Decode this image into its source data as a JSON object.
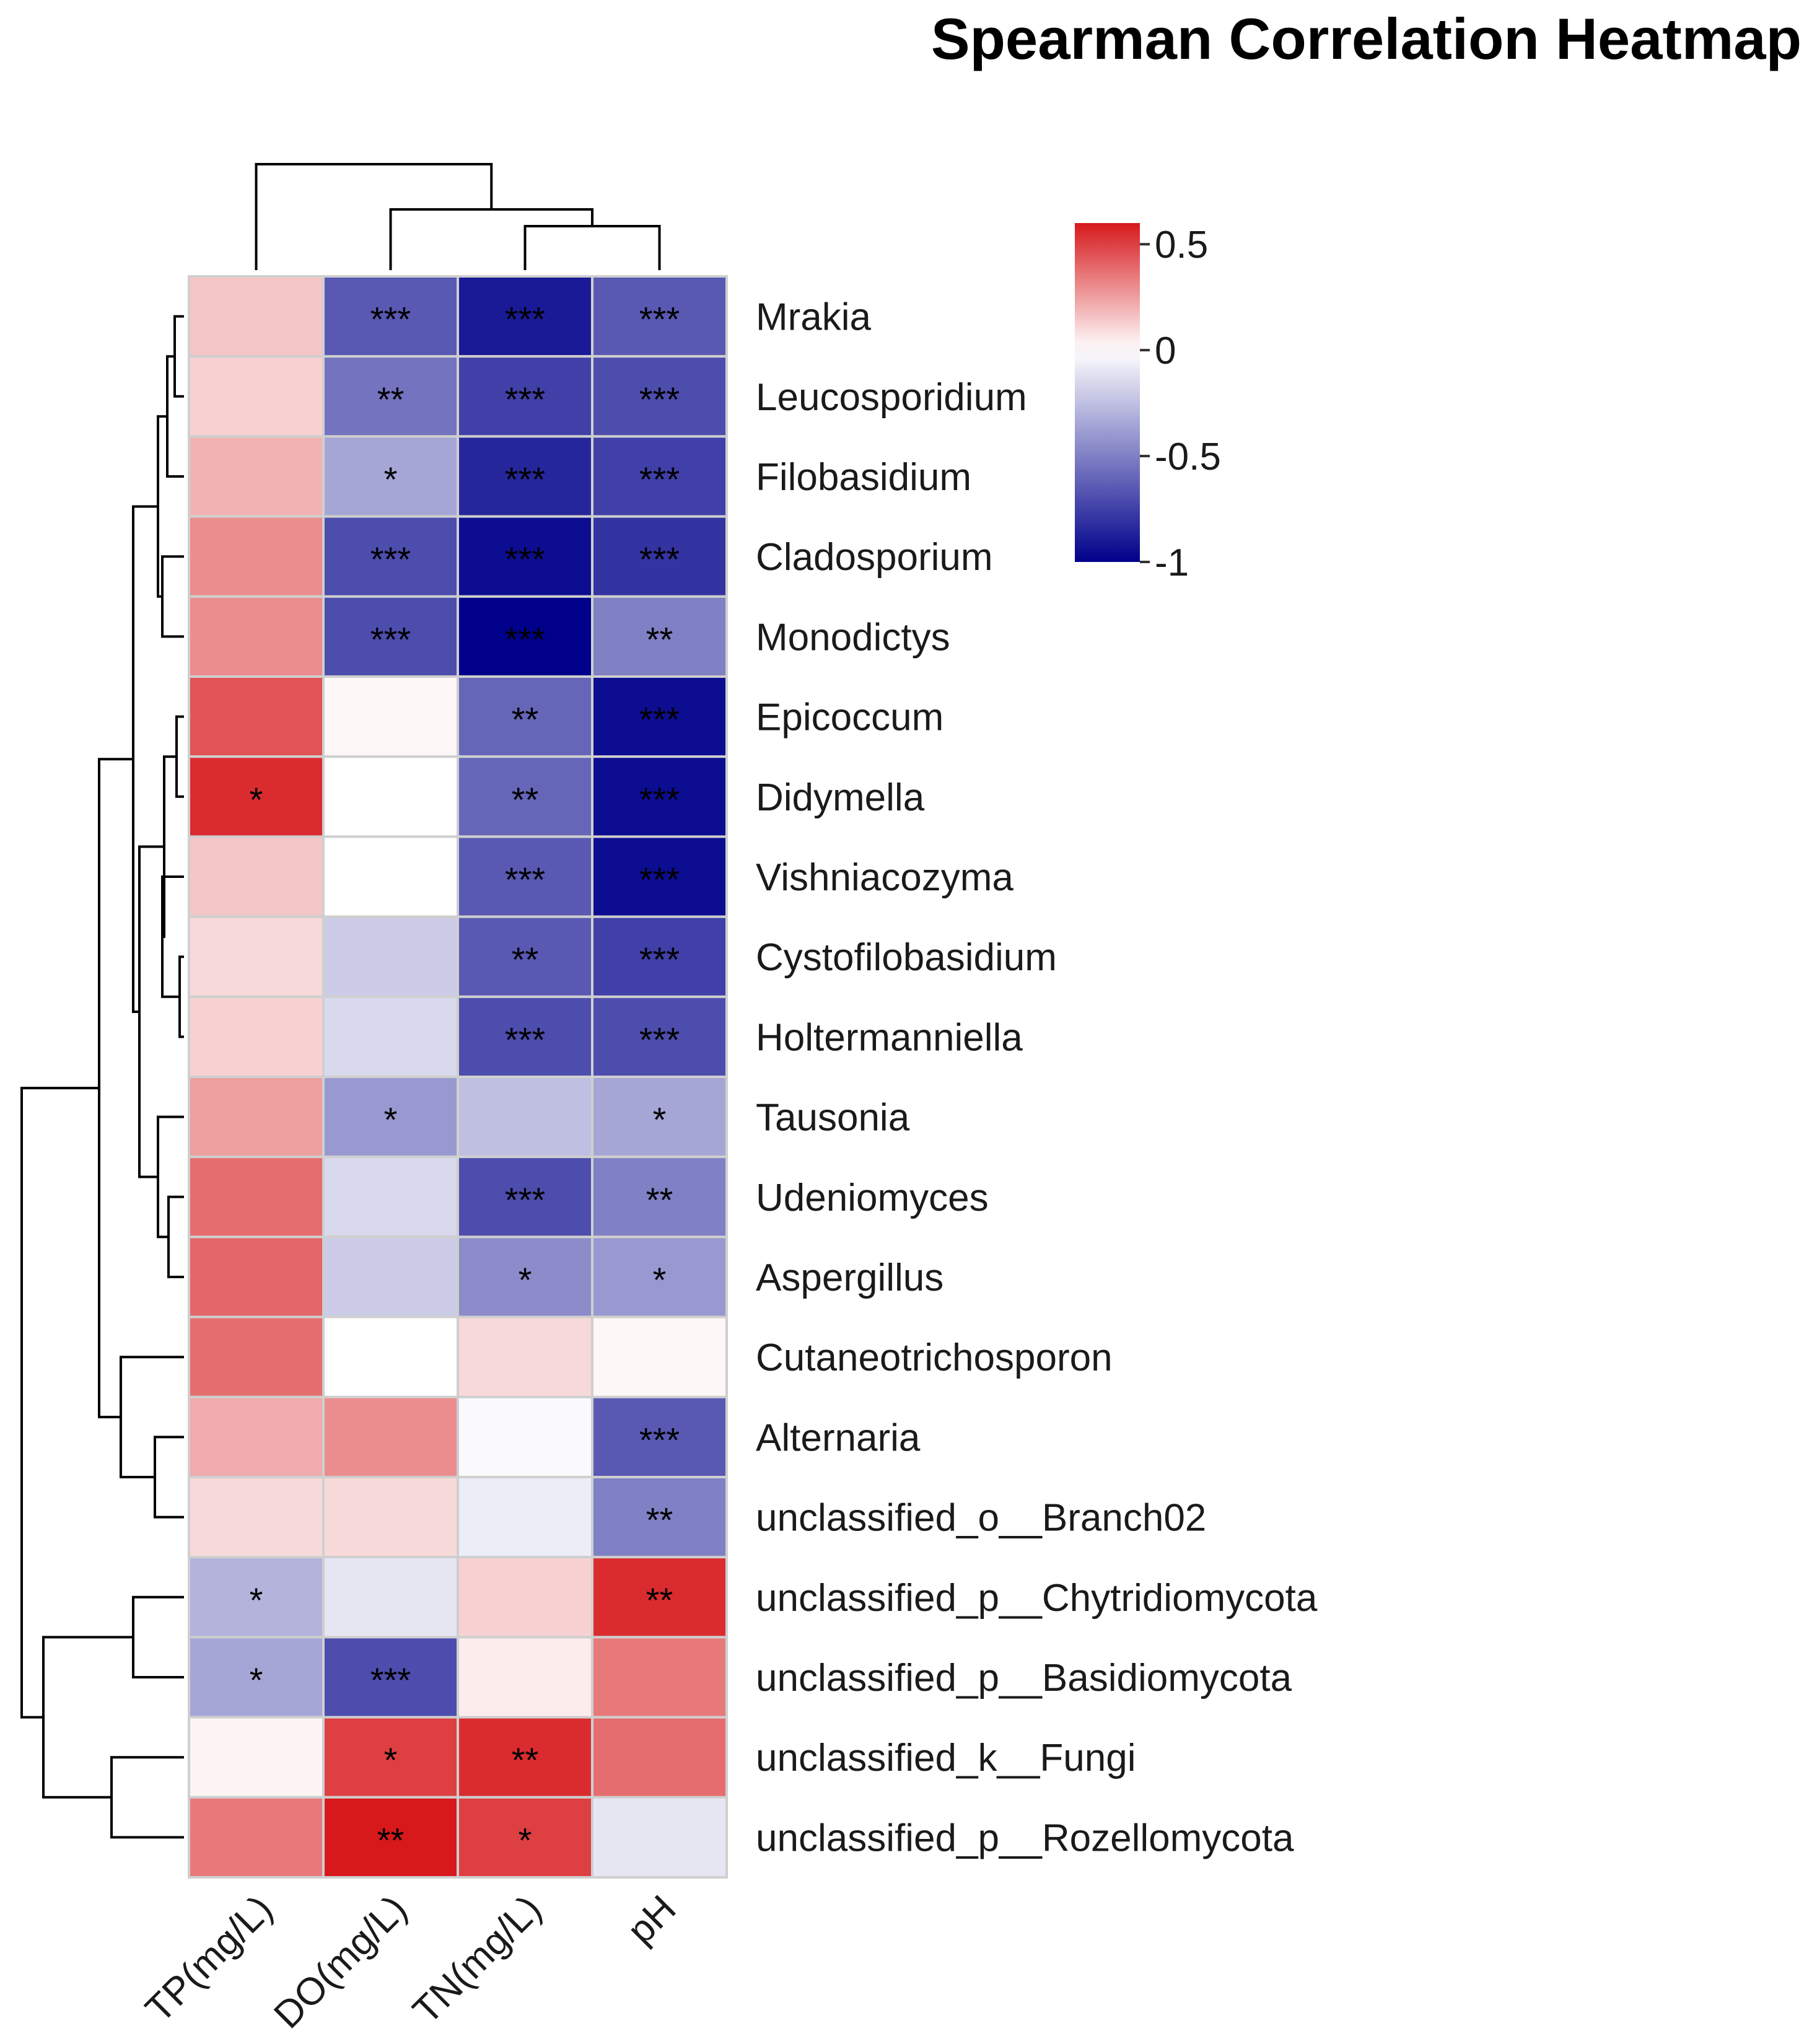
{
  "chart_data": {
    "type": "heatmap",
    "title": "Spearman Correlation Heatmap",
    "columns": [
      "TP(mg/L)",
      "DO(mg/L)",
      "TN(mg/L)",
      "pH"
    ],
    "rows": [
      "Mrakia",
      "Leucosporidium",
      "Filobasidium",
      "Cladosporium",
      "Monodictys",
      "Epicoccum",
      "Didymella",
      "Vishniacozyma",
      "Cystofilobasidium",
      "Holtermanniella",
      "Tausonia",
      "Udeniomyces",
      "Aspergillus",
      "Cutaneotrichosporon",
      "Alternaria",
      "unclassified_o__Branch02",
      "unclassified_p__Chytridiomycota",
      "unclassified_p__Basidiomycota",
      "unclassified_k__Fungi",
      "unclassified_p__Rozellomycota"
    ],
    "values": [
      [
        0.15,
        -0.65,
        -0.9,
        -0.65
      ],
      [
        0.12,
        -0.55,
        -0.75,
        -0.7
      ],
      [
        0.2,
        -0.35,
        -0.85,
        -0.75
      ],
      [
        0.3,
        -0.7,
        -0.95,
        -0.8
      ],
      [
        0.3,
        -0.7,
        -1.0,
        -0.5
      ],
      [
        0.45,
        0.02,
        -0.6,
        -0.95
      ],
      [
        0.55,
        0.0,
        -0.6,
        -0.95
      ],
      [
        0.15,
        0.0,
        -0.65,
        -0.95
      ],
      [
        0.1,
        -0.2,
        -0.65,
        -0.75
      ],
      [
        0.12,
        -0.15,
        -0.7,
        -0.7
      ],
      [
        0.25,
        -0.4,
        -0.25,
        -0.35
      ],
      [
        0.38,
        -0.15,
        -0.7,
        -0.5
      ],
      [
        0.4,
        -0.2,
        -0.45,
        -0.4
      ],
      [
        0.38,
        0.0,
        0.1,
        0.02
      ],
      [
        0.22,
        0.3,
        -0.02,
        -0.65
      ],
      [
        0.1,
        0.1,
        -0.07,
        -0.5
      ],
      [
        -0.3,
        -0.1,
        0.12,
        0.55
      ],
      [
        -0.35,
        -0.7,
        0.05,
        0.35
      ],
      [
        0.03,
        0.5,
        0.55,
        0.38
      ],
      [
        0.35,
        0.6,
        0.5,
        -0.1
      ]
    ],
    "significance": [
      [
        "",
        "***",
        "***",
        "***"
      ],
      [
        "",
        "**",
        "***",
        "***"
      ],
      [
        "",
        "*",
        "***",
        "***"
      ],
      [
        "",
        "***",
        "***",
        "***"
      ],
      [
        "",
        "***",
        "***",
        "**"
      ],
      [
        "",
        "",
        "**",
        "***"
      ],
      [
        "*",
        "",
        "**",
        "***"
      ],
      [
        "",
        "",
        "***",
        "***"
      ],
      [
        "",
        "",
        "**",
        "***"
      ],
      [
        "",
        "",
        "***",
        "***"
      ],
      [
        "",
        "*",
        "",
        "*"
      ],
      [
        "",
        "",
        "***",
        "**"
      ],
      [
        "",
        "",
        "*",
        "*"
      ],
      [
        "",
        "",
        "",
        ""
      ],
      [
        "",
        "",
        "",
        "***"
      ],
      [
        "",
        "",
        "",
        "**"
      ],
      [
        "*",
        "",
        "",
        "**"
      ],
      [
        "*",
        "***",
        "",
        ""
      ],
      [
        "",
        "*",
        "**",
        ""
      ],
      [
        "",
        "**",
        "*",
        ""
      ]
    ],
    "color_scale": {
      "min": -1,
      "max": 0.6,
      "low_color": "#00008b",
      "mid_color": "#ffffff",
      "high_color": "#d7191c",
      "ticks": [
        "0.5",
        "0",
        "-0.5",
        "-1"
      ],
      "tick_values": [
        0.5,
        0,
        -0.5,
        -1
      ]
    },
    "legend_position": "top-right"
  }
}
